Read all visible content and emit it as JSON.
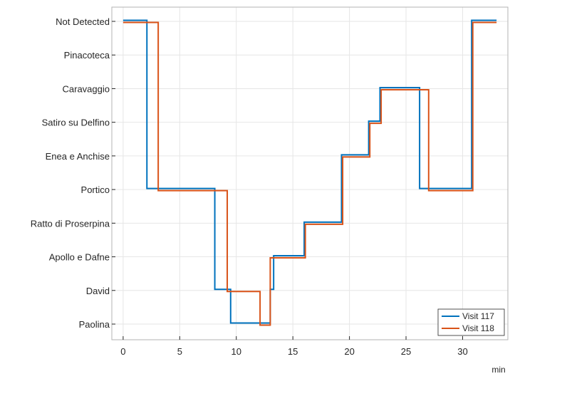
{
  "chart_data": {
    "type": "line",
    "step": true,
    "title": "",
    "xlabel": "min",
    "ylabel": "",
    "xlim": [
      -1,
      34
    ],
    "xticks": [
      0,
      5,
      10,
      15,
      20,
      25,
      30
    ],
    "xtick_labels": [
      "0",
      "5",
      "10",
      "15",
      "20",
      "25",
      "30"
    ],
    "categories": [
      "Paolina",
      "David",
      "Apollo e Dafne",
      "Ratto di Proserpina",
      "Portico",
      "Enea e Anchise",
      "Satiro su Delfino",
      "Caravaggio",
      "Pinacoteca",
      "Not Detected"
    ],
    "grid": true,
    "legend_position": "bottom-right",
    "series": [
      {
        "name": "Visit 117",
        "color": "#0072BD",
        "x": [
          0,
          2.1,
          2.1,
          8.1,
          8.1,
          9.5,
          9.5,
          13.0,
          13.0,
          13.3,
          13.3,
          16.0,
          16.0,
          19.3,
          19.3,
          21.7,
          21.7,
          22.7,
          22.7,
          26.2,
          26.2,
          30.8,
          30.8,
          33.0
        ],
        "y": [
          "Not Detected",
          "Not Detected",
          "Portico",
          "Portico",
          "David",
          "David",
          "Paolina",
          "Paolina",
          "David",
          "David",
          "Apollo e Dafne",
          "Apollo e Dafne",
          "Ratto di Proserpina",
          "Ratto di Proserpina",
          "Enea e Anchise",
          "Enea e Anchise",
          "Satiro su Delfino",
          "Satiro su Delfino",
          "Caravaggio",
          "Caravaggio",
          "Portico",
          "Portico",
          "Not Detected",
          "Not Detected"
        ]
      },
      {
        "name": "Visit 118",
        "color": "#D95319",
        "x": [
          0,
          3.1,
          3.1,
          9.2,
          9.2,
          12.1,
          12.1,
          13.0,
          13.0,
          16.1,
          16.1,
          19.4,
          19.4,
          21.8,
          21.8,
          22.8,
          22.8,
          27.0,
          27.0,
          30.9,
          30.9,
          33.0
        ],
        "y": [
          "Not Detected",
          "Not Detected",
          "Portico",
          "Portico",
          "David",
          "David",
          "Paolina",
          "Paolina",
          "Apollo e Dafne",
          "Apollo e Dafne",
          "Ratto di Proserpina",
          "Ratto di Proserpina",
          "Enea e Anchise",
          "Enea e Anchise",
          "Satiro su Delfino",
          "Satiro su Delfino",
          "Caravaggio",
          "Caravaggio",
          "Portico",
          "Portico",
          "Not Detected",
          "Not Detected"
        ]
      }
    ]
  }
}
